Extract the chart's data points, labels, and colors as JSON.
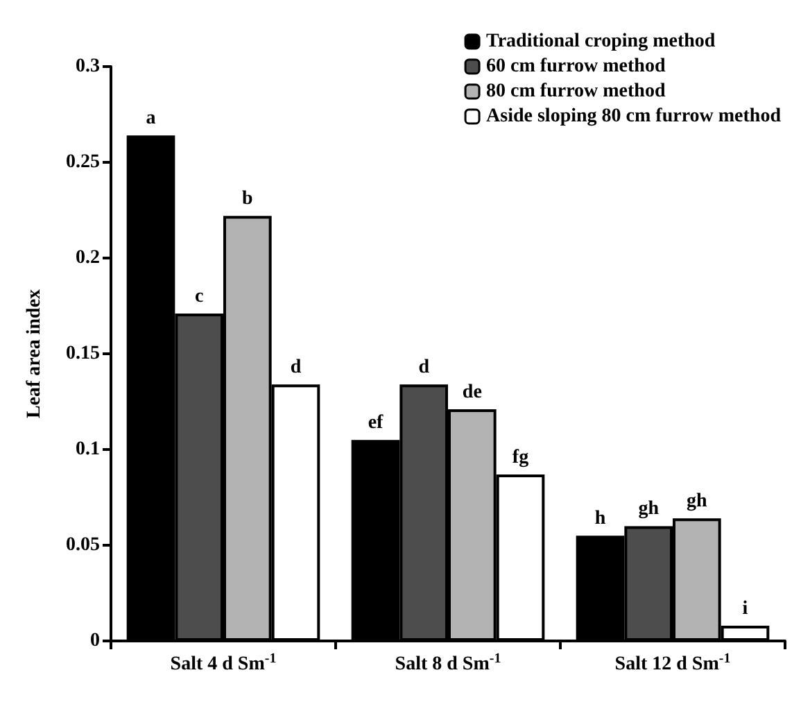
{
  "chart_data": {
    "type": "bar",
    "ylabel": "Leaf area index",
    "categories": [
      "Salt 4 d Sm$^{-1}$",
      "Salt 8 d Sm$^{-1}$",
      "Salt 12 d Sm$^{-1}$"
    ],
    "series": [
      {
        "name": "Traditional croping method",
        "color": "#000000",
        "values": [
          0.264,
          0.105,
          0.055
        ],
        "value_labels": [
          "a",
          "ef",
          "h"
        ]
      },
      {
        "name": "60 cm furrow method",
        "color": "#4d4d4d",
        "values": [
          0.171,
          0.134,
          0.06
        ],
        "value_labels": [
          "c",
          "d",
          "gh"
        ]
      },
      {
        "name": "80 cm furrow method",
        "color": "#b3b3b3",
        "values": [
          0.222,
          0.121,
          0.064
        ],
        "value_labels": [
          "b",
          "de",
          "gh"
        ]
      },
      {
        "name": "Aside sloping 80 cm furrow method",
        "color": "#ffffff",
        "values": [
          0.134,
          0.087,
          0.008
        ],
        "value_labels": [
          "d",
          "fg",
          "i"
        ]
      }
    ],
    "ylim": [
      0,
      0.3
    ],
    "yticks": [
      0,
      0.05,
      0.1,
      0.15,
      0.2,
      0.25,
      0.3
    ],
    "grid": false,
    "legend": "top right"
  }
}
